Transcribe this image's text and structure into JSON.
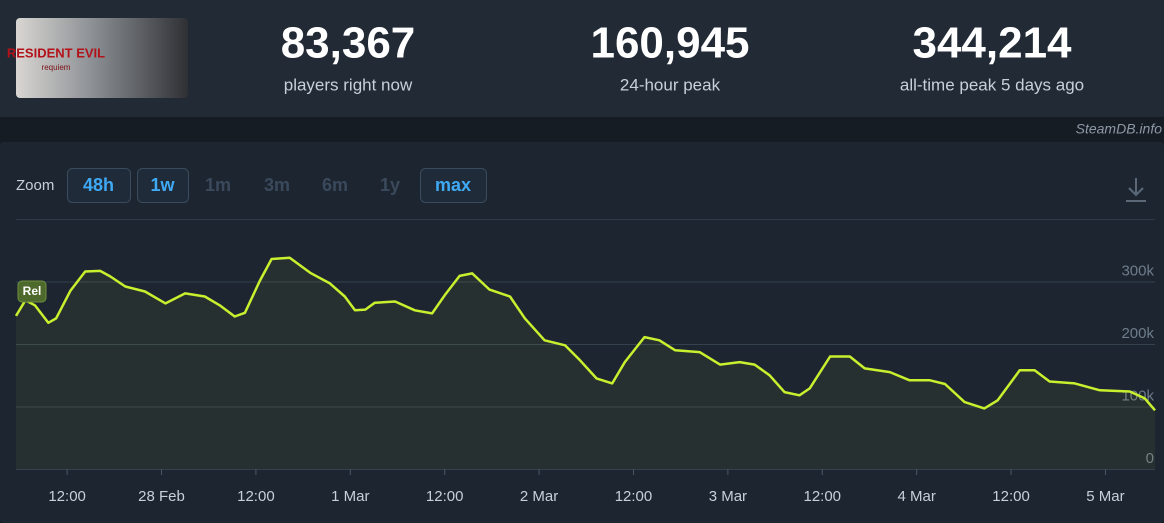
{
  "thumbnail": {
    "title": "RESIDENT EVIL",
    "subtitle": "requiem"
  },
  "stats": [
    {
      "value": "83,367",
      "label": "players right now"
    },
    {
      "value": "160,945",
      "label": "24-hour peak"
    },
    {
      "value": "344,214",
      "label": "all-time peak 5 days ago"
    }
  ],
  "source": "SteamDB.info",
  "zoom": {
    "label": "Zoom",
    "options": [
      {
        "text": "48h",
        "active": true
      },
      {
        "text": "1w",
        "active": true
      },
      {
        "text": "1m",
        "active": false
      },
      {
        "text": "3m",
        "active": false
      },
      {
        "text": "6m",
        "active": false
      },
      {
        "text": "1y",
        "active": false
      },
      {
        "text": "max",
        "active": true
      }
    ]
  },
  "chart_data": {
    "type": "line",
    "color": "#c8f02e",
    "annotation": "Rel",
    "x": [
      5.5,
      6.7,
      7.9,
      9.6,
      10.6,
      12.4,
      14.3,
      16.2,
      17.5,
      19.4,
      21.9,
      24.5,
      27.0,
      29.5,
      31.4,
      33.3,
      34.6,
      36.5,
      38.0,
      40.3,
      42.9,
      45.4,
      47.3,
      48.6,
      49.9,
      51.1,
      53.7,
      56.2,
      58.4,
      60.0,
      61.9,
      63.5,
      65.7,
      68.3,
      70.2,
      72.7,
      75.3,
      77.2,
      79.3,
      81.3,
      82.9,
      85.4,
      87.3,
      89.3,
      92.4,
      95.0,
      97.5,
      99.4,
      101.3,
      103.2,
      105.1,
      106.4,
      109.0,
      111.5,
      113.4,
      116.6,
      119.1,
      121.7,
      123.6,
      126.1,
      128.6,
      130.3,
      133.1,
      135.0,
      136.9,
      140.1,
      143.3,
      147.1,
      149.0,
      150.3
    ],
    "values": [
      245000,
      270000,
      262000,
      234000,
      241000,
      285000,
      316000,
      317000,
      308000,
      292000,
      284000,
      265000,
      281000,
      276000,
      262000,
      244000,
      250000,
      301000,
      336000,
      338000,
      314000,
      297000,
      276000,
      254000,
      255000,
      266000,
      268000,
      254000,
      249000,
      278000,
      309000,
      313000,
      287000,
      276000,
      241000,
      206000,
      198000,
      174000,
      145000,
      137000,
      171000,
      211000,
      206000,
      190000,
      187000,
      167000,
      171000,
      167000,
      150000,
      123000,
      118000,
      129000,
      180000,
      180000,
      161000,
      155000,
      142000,
      142000,
      136000,
      107000,
      97000,
      110000,
      158000,
      158000,
      140000,
      137000,
      126000,
      124000,
      113000,
      94000
    ],
    "xlim": [
      5.5,
      150.3
    ],
    "xticks": [
      {
        "value": 12,
        "label": "12:00"
      },
      {
        "value": 24,
        "label": "28 Feb"
      },
      {
        "value": 36,
        "label": "12:00"
      },
      {
        "value": 48,
        "label": "1 Mar"
      },
      {
        "value": 60,
        "label": "12:00"
      },
      {
        "value": 72,
        "label": "2 Mar"
      },
      {
        "value": 84,
        "label": "12:00"
      },
      {
        "value": 96,
        "label": "3 Mar"
      },
      {
        "value": 108,
        "label": "12:00"
      },
      {
        "value": 120,
        "label": "4 Mar"
      },
      {
        "value": 132,
        "label": "12:00"
      },
      {
        "value": 144,
        "label": "5 Mar"
      }
    ],
    "ylim": [
      0,
      400000
    ],
    "yticks": [
      0,
      {
        "value": 100000,
        "label": "100k"
      },
      {
        "value": 200000,
        "label": "200k"
      },
      {
        "value": 300000,
        "label": "300k"
      }
    ],
    "grid": true
  }
}
